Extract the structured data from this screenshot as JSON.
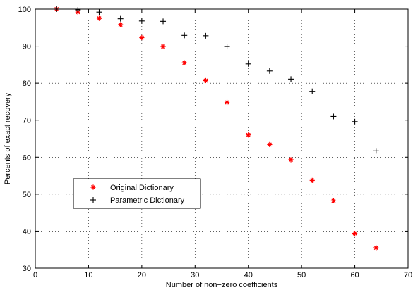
{
  "chart_data": {
    "type": "scatter",
    "title": "",
    "xlabel": "Number of non−zero coefficients",
    "ylabel": "Percents of exact recovery",
    "xlim": [
      0,
      70
    ],
    "ylim": [
      30,
      100
    ],
    "x_ticks": [
      "0",
      "10",
      "20",
      "30",
      "40",
      "50",
      "60",
      "70"
    ],
    "y_ticks": [
      "30",
      "40",
      "50",
      "60",
      "70",
      "80",
      "90",
      "100"
    ],
    "grid": true,
    "legend_position": "center-left",
    "series": [
      {
        "name": "Original Dictionary",
        "marker": "asterisk",
        "color": "#ff0000",
        "x": [
          4,
          8,
          12,
          16,
          20,
          24,
          28,
          32,
          36,
          40,
          44,
          48,
          52,
          56,
          60,
          64
        ],
        "y": [
          100,
          99.2,
          97.5,
          95.8,
          92.3,
          89.9,
          85.5,
          80.7,
          74.8,
          66.0,
          63.4,
          59.3,
          53.7,
          48.2,
          39.4,
          35.5
        ]
      },
      {
        "name": "Parametric Dictionary",
        "marker": "plus",
        "color": "#000000",
        "x": [
          4,
          8,
          12,
          16,
          20,
          24,
          28,
          32,
          36,
          40,
          44,
          48,
          52,
          56,
          60,
          64
        ],
        "y": [
          100,
          99.8,
          99.2,
          97.4,
          96.8,
          96.7,
          92.9,
          92.8,
          89.9,
          85.2,
          83.3,
          81.1,
          77.8,
          71.0,
          69.6,
          61.7
        ]
      }
    ]
  }
}
